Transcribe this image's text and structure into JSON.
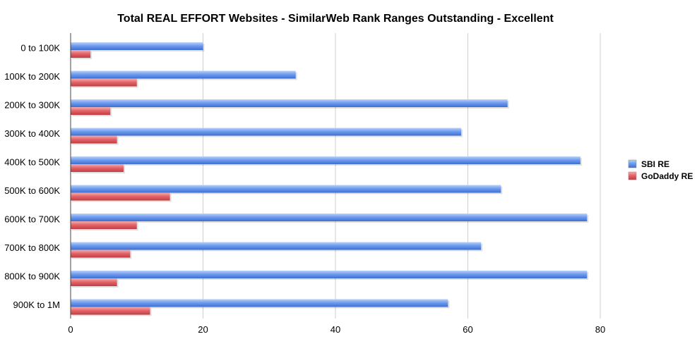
{
  "chart_data": {
    "type": "bar",
    "orientation": "horizontal",
    "title": "Total REAL EFFORT Websites - SimilarWeb Rank Ranges Outstanding - Excellent",
    "xlabel": "",
    "ylabel": "",
    "categories": [
      "0 to 100K",
      "100K to 200K",
      "200K to 300K",
      "300K to 400K",
      "400K to 500K",
      "500K to 600K",
      "600K to 700K",
      "700K to 800K",
      "800K to 900K",
      "900K to 1M"
    ],
    "series": [
      {
        "name": "SBI RE",
        "color": "#5b8fe8",
        "values": [
          20,
          34,
          66,
          59,
          77,
          65,
          78,
          62,
          78,
          57
        ]
      },
      {
        "name": "GoDaddy RE",
        "color": "#e05a5e",
        "values": [
          3,
          10,
          6,
          7,
          8,
          15,
          10,
          9,
          7,
          12
        ]
      }
    ],
    "xlim": [
      0,
      80
    ],
    "xticks": [
      0,
      20,
      40,
      60,
      80
    ],
    "grid": true,
    "legend_position": "right"
  }
}
